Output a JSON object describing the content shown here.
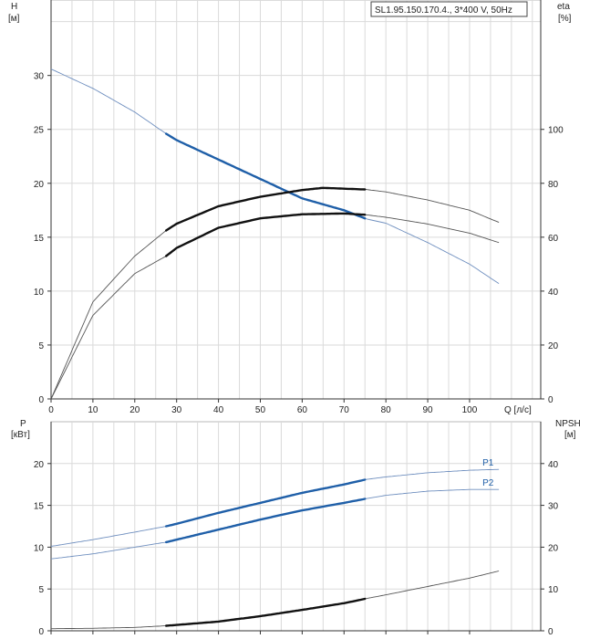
{
  "chart_data": [
    {
      "type": "line",
      "title": "SL1.95.150.170.4., 3*400 V, 50Hz",
      "xlabel": "Q [л/с]",
      "ylabel_left": "H",
      "ylabel_left_unit": "[м]",
      "ylabel_right": "eta",
      "ylabel_right_unit": "[%]",
      "xlim": [
        0,
        117
      ],
      "ylim_left": [
        0,
        37
      ],
      "ylim_right": [
        0,
        148
      ],
      "x_ticks": [
        "0",
        "10",
        "20",
        "30",
        "40",
        "50",
        "60",
        "70",
        "80",
        "90",
        "100"
      ],
      "y_ticks_left": [
        "0",
        "5",
        "10",
        "15",
        "20",
        "25",
        "30"
      ],
      "y_ticks_right": [
        "0",
        "20",
        "40",
        "60",
        "80",
        "100"
      ],
      "grid": true,
      "series": [
        {
          "axis": "left",
          "style": "blue",
          "x": [
            0,
            10,
            20,
            27.5,
            30,
            40,
            50,
            60,
            70,
            75.3,
            80,
            90,
            100,
            107
          ],
          "y": [
            30.6,
            28.8,
            26.6,
            24.6,
            24.0,
            22.2,
            20.4,
            18.6,
            17.5,
            16.7,
            16.3,
            14.5,
            12.5,
            10.7
          ],
          "operating_range": [
            27.5,
            75.3
          ]
        },
        {
          "axis": "right",
          "style": "black",
          "x": [
            0,
            10,
            20,
            27.5,
            30,
            40,
            50,
            60,
            65,
            70,
            75.3,
            80,
            90,
            100,
            107
          ],
          "y": [
            0,
            36,
            53,
            62.5,
            65,
            71.5,
            75,
            77.5,
            78.3,
            78,
            77.7,
            76.8,
            73.8,
            70,
            65.5
          ],
          "operating_range": [
            27.5,
            75.3
          ]
        },
        {
          "axis": "right",
          "style": "black",
          "x": [
            0,
            10,
            20,
            27.5,
            30,
            40,
            50,
            60,
            70,
            75.3,
            80,
            90,
            100,
            107
          ],
          "y": [
            0,
            31,
            46.5,
            53,
            56,
            63.5,
            67,
            68.5,
            68.8,
            68.3,
            67.4,
            64.9,
            61.5,
            58
          ],
          "operating_range": [
            27.5,
            75.3
          ]
        }
      ]
    },
    {
      "type": "line",
      "xlabel": "",
      "ylabel_left": "P",
      "ylabel_left_unit": "[кВт]",
      "ylabel_right": "NPSH",
      "ylabel_right_unit": "[м]",
      "xlim": [
        0,
        117
      ],
      "ylim_left": [
        0,
        25
      ],
      "ylim_right": [
        0,
        50
      ],
      "y_ticks_left": [
        "0",
        "5",
        "10",
        "15",
        "20"
      ],
      "y_ticks_right": [
        "0",
        "10",
        "20",
        "30",
        "40"
      ],
      "grid": true,
      "series": [
        {
          "name": "P1",
          "axis": "left",
          "style": "blue",
          "x": [
            0,
            10,
            20,
            27.5,
            30,
            40,
            50,
            60,
            70,
            75.3,
            80,
            90,
            100,
            107
          ],
          "y": [
            10.1,
            10.9,
            11.8,
            12.5,
            12.8,
            14.1,
            15.3,
            16.5,
            17.5,
            18.1,
            18.4,
            18.9,
            19.2,
            19.3
          ],
          "operating_range": [
            27.5,
            75.3
          ]
        },
        {
          "name": "P2",
          "axis": "left",
          "style": "blue",
          "x": [
            0,
            10,
            20,
            27.5,
            30,
            40,
            50,
            60,
            70,
            75.3,
            80,
            90,
            100,
            107
          ],
          "y": [
            8.6,
            9.2,
            10.0,
            10.6,
            10.9,
            12.1,
            13.3,
            14.4,
            15.3,
            15.8,
            16.2,
            16.7,
            16.9,
            16.9
          ],
          "operating_range": [
            27.5,
            75.3
          ]
        },
        {
          "axis": "right",
          "style": "black",
          "x": [
            0,
            10,
            20,
            27.5,
            30,
            40,
            50,
            60,
            70,
            75.3,
            80,
            90,
            100,
            107
          ],
          "y": [
            0.5,
            0.6,
            0.8,
            1.2,
            1.4,
            2.2,
            3.5,
            5.0,
            6.6,
            7.7,
            8.6,
            10.6,
            12.6,
            14.3
          ],
          "operating_range": [
            27.5,
            75.3
          ]
        }
      ]
    }
  ]
}
